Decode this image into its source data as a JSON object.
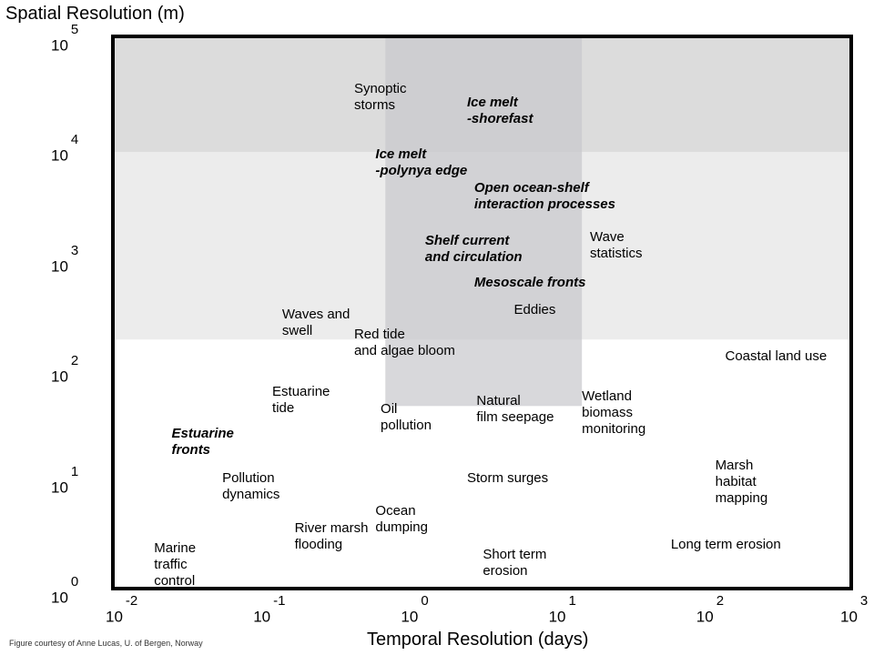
{
  "chart_data": {
    "type": "scatter",
    "title": "Spatial Resolution (m)",
    "xlabel": "Temporal Resolution (days)",
    "ylabel": "Spatial Resolution (m)",
    "x_scale": "log",
    "y_scale": "log",
    "xlim": [
      0.01,
      1000
    ],
    "ylim": [
      1,
      100000
    ],
    "x_ticks": [
      {
        "base": "10",
        "exp": "-2"
      },
      {
        "base": "10",
        "exp": "-1"
      },
      {
        "base": "10",
        "exp": "0"
      },
      {
        "base": "10",
        "exp": "1"
      },
      {
        "base": "10",
        "exp": "2"
      },
      {
        "base": "10",
        "exp": "3"
      }
    ],
    "y_ticks": [
      {
        "base": "10",
        "exp": "5"
      },
      {
        "base": "10",
        "exp": "4"
      },
      {
        "base": "10",
        "exp": "3"
      },
      {
        "base": "10",
        "exp": "2"
      },
      {
        "base": "10",
        "exp": "1"
      },
      {
        "base": "10",
        "exp": "0"
      }
    ],
    "regions": [
      {
        "x": [
          0.01,
          1000
        ],
        "y": [
          180,
          100000
        ],
        "color": "#ececec"
      },
      {
        "x": [
          0.01,
          1000
        ],
        "y": [
          9000,
          100000
        ],
        "color": "#dcdcdc"
      },
      {
        "x": [
          0.7,
          15
        ],
        "y": [
          45,
          100000
        ],
        "color": "#c8c8cc"
      }
    ],
    "processes": [
      {
        "label": "Synoptic\nstorms",
        "x": 0.43,
        "y": 33000,
        "bold": false
      },
      {
        "label": "Ice melt\n-shorefast",
        "x": 2.5,
        "y": 25000,
        "bold": true
      },
      {
        "label": "Ice melt\n-polynya edge",
        "x": 0.6,
        "y": 8500,
        "bold": true
      },
      {
        "label": "Open ocean-shelf\ninteraction processes",
        "x": 2.8,
        "y": 4200,
        "bold": true
      },
      {
        "label": "Wave\nstatistics",
        "x": 17,
        "y": 1500,
        "bold": false
      },
      {
        "label": "Shelf current\nand circulation",
        "x": 1.3,
        "y": 1400,
        "bold": true
      },
      {
        "label": "Mesoscale fronts",
        "x": 2.8,
        "y": 590,
        "bold": true
      },
      {
        "label": "Eddies",
        "x": 5.2,
        "y": 330,
        "bold": false
      },
      {
        "label": "Waves and\nswell",
        "x": 0.14,
        "y": 300,
        "bold": false
      },
      {
        "label": "Red tide\nand algae bloom",
        "x": 0.43,
        "y": 200,
        "bold": false
      },
      {
        "label": "Coastal land use",
        "x": 140,
        "y": 125,
        "bold": false
      },
      {
        "label": "Wetland\nbiomass\nmonitoring",
        "x": 15,
        "y": 55,
        "bold": false
      },
      {
        "label": "Estuarine\ntide",
        "x": 0.12,
        "y": 60,
        "bold": false
      },
      {
        "label": "Oil\npollution",
        "x": 0.65,
        "y": 42,
        "bold": false
      },
      {
        "label": "Natural\nfilm seepage",
        "x": 2.9,
        "y": 50,
        "bold": false
      },
      {
        "label": "Estuarine\nfronts",
        "x": 0.025,
        "y": 25,
        "bold": true
      },
      {
        "label": "Marsh\nhabitat\nmapping",
        "x": 120,
        "y": 13,
        "bold": false
      },
      {
        "label": "Pollution\ndynamics",
        "x": 0.055,
        "y": 10,
        "bold": false
      },
      {
        "label": "Storm surges",
        "x": 2.5,
        "y": 10,
        "bold": false
      },
      {
        "label": "Ocean\ndumping",
        "x": 0.6,
        "y": 5,
        "bold": false
      },
      {
        "label": "River marsh\nflooding",
        "x": 0.17,
        "y": 3.5,
        "bold": false
      },
      {
        "label": "Marine\ntraffic\ncontrol",
        "x": 0.019,
        "y": 2.3,
        "bold": false
      },
      {
        "label": "Short term\nerosion",
        "x": 3.2,
        "y": 2.0,
        "bold": false
      },
      {
        "label": "Long term erosion",
        "x": 60,
        "y": 2.5,
        "bold": false
      }
    ]
  },
  "credit": "Figure  courtesy of Anne Lucas, U. of Bergen, Norway"
}
